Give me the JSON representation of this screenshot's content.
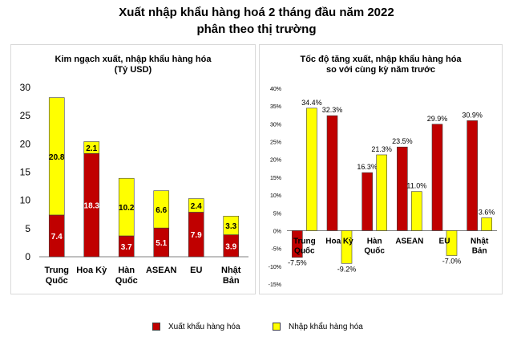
{
  "page": {
    "title_line1": "Xuất nhập khẩu hàng hoá 2 tháng đầu năm 2022",
    "title_line2": "phân theo thị trường"
  },
  "colors": {
    "export": "#c00000",
    "import": "#ffff00",
    "bar_outline": "#404040",
    "axis": "#808080"
  },
  "legend": {
    "export_label": "Xuất khẩu hàng hóa",
    "import_label": "Nhập khẩu hàng hóa"
  },
  "chart_data": [
    {
      "type": "bar",
      "stacked": true,
      "title": "Kim ngạch xuất, nhập khẩu hàng hóa",
      "subtitle": "(Tỷ USD)",
      "categories": [
        [
          "Trung",
          "Quốc"
        ],
        [
          "Hoa Kỳ"
        ],
        [
          "Hàn",
          "Quốc"
        ],
        [
          "ASEAN"
        ],
        [
          "EU"
        ],
        [
          "Nhật",
          "Bản"
        ]
      ],
      "series": [
        {
          "name": "Xuất khẩu hàng hóa",
          "values": [
            7.4,
            18.3,
            3.7,
            5.1,
            7.9,
            3.9
          ]
        },
        {
          "name": "Nhập khẩu hàng hóa",
          "values": [
            20.8,
            2.1,
            10.2,
            6.6,
            2.4,
            3.3
          ]
        }
      ],
      "ylim": [
        0,
        30
      ],
      "yticks": [
        "0",
        "5",
        "10",
        "15",
        "20",
        "25",
        "30"
      ],
      "grid": false
    },
    {
      "type": "bar",
      "title": "Tốc độ tăng xuất, nhập khẩu hàng hóa",
      "subtitle": "so với cùng kỳ năm trước",
      "categories": [
        [
          "Trung",
          "Quốc"
        ],
        [
          "Hoa Kỳ"
        ],
        [
          "Hàn",
          "Quốc"
        ],
        [
          "ASEAN"
        ],
        [
          "EU"
        ],
        [
          "Nhật",
          "Bản"
        ]
      ],
      "series": [
        {
          "name": "Xuất khẩu hàng hóa",
          "values": [
            -7.5,
            32.3,
            16.3,
            23.5,
            29.9,
            30.9
          ],
          "labels": [
            "-7.5%",
            "32.3%",
            "16.3%",
            "23.5%",
            "29.9%",
            "30.9%"
          ]
        },
        {
          "name": "Nhập khẩu hàng hóa",
          "values": [
            34.4,
            -9.2,
            21.3,
            11.0,
            -7.0,
            3.6
          ],
          "labels": [
            "34.4%",
            "-9.2%",
            "21.3%",
            "11.0%",
            "-7.0%",
            "3.6%"
          ]
        }
      ],
      "ylim": [
        -15,
        40
      ],
      "yticks": [
        "-15%",
        "-10%",
        "-5%",
        "0%",
        "5%",
        "10%",
        "15%",
        "20%",
        "25%",
        "30%",
        "35%",
        "40%"
      ],
      "grid": false
    }
  ]
}
